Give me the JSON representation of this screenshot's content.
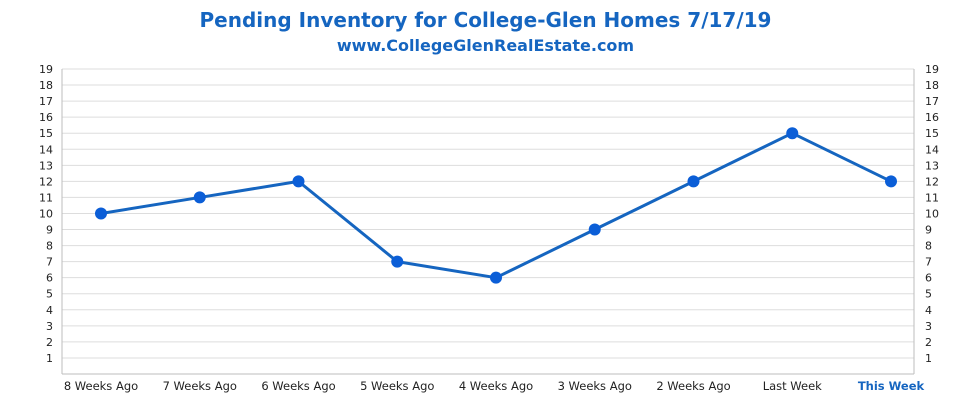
{
  "chart_data": {
    "type": "line",
    "title": "Pending Inventory for College-Glen Homes 7/17/19",
    "subtitle": "www.CollegeGlenRealEstate.com",
    "categories": [
      "8 Weeks Ago",
      "7 Weeks Ago",
      "6 Weeks Ago",
      "5 Weeks Ago",
      "4 Weeks Ago",
      "3 Weeks Ago",
      "2 Weeks Ago",
      "Last Week",
      "This Week"
    ],
    "highlight_category": "This Week",
    "series": [
      {
        "name": "Pending Inventory",
        "values": [
          10,
          11,
          12,
          7,
          6,
          9,
          12,
          15,
          12
        ]
      }
    ],
    "y_ticks": [
      1,
      2,
      3,
      4,
      5,
      6,
      7,
      8,
      9,
      10,
      11,
      12,
      13,
      14,
      15,
      16,
      17,
      18,
      19
    ],
    "ylim": [
      0,
      19
    ],
    "grid": true,
    "secondary_y_axis": true,
    "colors": {
      "line": "#1565c0",
      "marker": "#0b5ed7",
      "title": "#1565c0",
      "grid": "#dddddd"
    }
  }
}
